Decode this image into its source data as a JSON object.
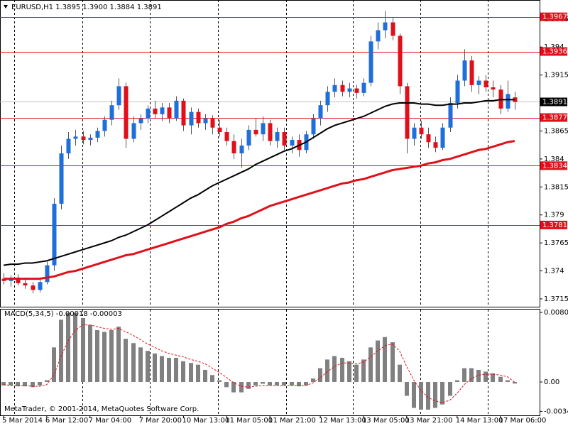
{
  "chart_data": [
    {
      "type": "candlestick",
      "title": "EURUSD,H1 1.3895 1.3900 1.3884 1.3891",
      "up_color": "#1e6fd9",
      "down_color": "#e0101a",
      "categories": [
        "5 Mar 2014",
        null,
        null,
        null,
        null,
        null,
        "6 Mar 12:00",
        null,
        null,
        null,
        null,
        null,
        "7 Mar 04:00",
        null,
        null,
        null,
        null,
        null,
        null,
        "7 Mar 20:00",
        null,
        null,
        null,
        null,
        null,
        "10 Mar 13:00",
        null,
        null,
        null,
        null,
        null,
        "11 Mar 05:00",
        null,
        null,
        null,
        null,
        null,
        "11 Mar 21:00",
        null,
        null,
        null,
        null,
        null,
        null,
        "12 Mar 13:00",
        null,
        null,
        null,
        null,
        null,
        "13 Mar 05:00",
        null,
        null,
        null,
        null,
        null,
        "13 Mar 21:00",
        null,
        null,
        null,
        null,
        null,
        null,
        "14 Mar 13:00",
        null,
        null,
        null,
        null,
        null,
        "17 Mar 06:00",
        null,
        null
      ],
      "ohlc": [
        [
          1.3733,
          1.3738,
          1.3728,
          1.3731
        ],
        [
          1.3731,
          1.3736,
          1.3726,
          1.3734
        ],
        [
          1.3734,
          1.3737,
          1.3727,
          1.3729
        ],
        [
          1.3729,
          1.3733,
          1.3724,
          1.3727
        ],
        [
          1.3727,
          1.373,
          1.372,
          1.3723
        ],
        [
          1.3723,
          1.3732,
          1.3721,
          1.373
        ],
        [
          1.373,
          1.3748,
          1.3728,
          1.3745
        ],
        [
          1.3745,
          1.3805,
          1.374,
          1.38
        ],
        [
          1.38,
          1.3852,
          1.3795,
          1.3845
        ],
        [
          1.3845,
          1.3864,
          1.384,
          1.3858
        ],
        [
          1.3858,
          1.3866,
          1.3852,
          1.386
        ],
        [
          1.386,
          1.3865,
          1.3853,
          1.3857
        ],
        [
          1.3857,
          1.3862,
          1.3852,
          1.3859
        ],
        [
          1.3859,
          1.3868,
          1.3855,
          1.3865
        ],
        [
          1.3865,
          1.3878,
          1.386,
          1.3875
        ],
        [
          1.3875,
          1.3892,
          1.387,
          1.3888
        ],
        [
          1.3888,
          1.3912,
          1.3884,
          1.3905
        ],
        [
          1.3905,
          1.3908,
          1.385,
          1.3858
        ],
        [
          1.3858,
          1.3878,
          1.3855,
          1.3872
        ],
        [
          1.3872,
          1.388,
          1.3866,
          1.3876
        ],
        [
          1.3876,
          1.3888,
          1.3872,
          1.3885
        ],
        [
          1.3885,
          1.3892,
          1.3876,
          1.388
        ],
        [
          1.388,
          1.389,
          1.3874,
          1.3886
        ],
        [
          1.3886,
          1.389,
          1.3872,
          1.3876
        ],
        [
          1.3876,
          1.3896,
          1.3874,
          1.3892
        ],
        [
          1.3892,
          1.3894,
          1.3865,
          1.387
        ],
        [
          1.387,
          1.3886,
          1.3862,
          1.3882
        ],
        [
          1.3882,
          1.3885,
          1.3868,
          1.3872
        ],
        [
          1.3872,
          1.388,
          1.3866,
          1.3876
        ],
        [
          1.3876,
          1.3879,
          1.3862,
          1.3868
        ],
        [
          1.3868,
          1.3875,
          1.386,
          1.3864
        ],
        [
          1.3864,
          1.3868,
          1.3852,
          1.3856
        ],
        [
          1.3856,
          1.3862,
          1.384,
          1.3845
        ],
        [
          1.3845,
          1.3858,
          1.3832,
          1.3852
        ],
        [
          1.3852,
          1.387,
          1.3848,
          1.3866
        ],
        [
          1.3866,
          1.3876,
          1.386,
          1.3862
        ],
        [
          1.3862,
          1.3878,
          1.3856,
          1.3872
        ],
        [
          1.3872,
          1.3875,
          1.3852,
          1.3856
        ],
        [
          1.3856,
          1.3868,
          1.385,
          1.3864
        ],
        [
          1.3864,
          1.3868,
          1.3848,
          1.3852
        ],
        [
          1.3852,
          1.386,
          1.3845,
          1.3857
        ],
        [
          1.3857,
          1.3862,
          1.3842,
          1.3848
        ],
        [
          1.3848,
          1.3865,
          1.3845,
          1.3862
        ],
        [
          1.3862,
          1.388,
          1.3858,
          1.3876
        ],
        [
          1.3876,
          1.3892,
          1.387,
          1.3888
        ],
        [
          1.3888,
          1.3905,
          1.3882,
          1.39
        ],
        [
          1.39,
          1.3912,
          1.3895,
          1.3906
        ],
        [
          1.3906,
          1.391,
          1.3896,
          1.39
        ],
        [
          1.39,
          1.3908,
          1.3895,
          1.3903
        ],
        [
          1.3903,
          1.3906,
          1.3894,
          1.3899
        ],
        [
          1.3899,
          1.3912,
          1.3896,
          1.3908
        ],
        [
          1.3908,
          1.395,
          1.3905,
          1.3945
        ],
        [
          1.3945,
          1.3962,
          1.3938,
          1.3955
        ],
        [
          1.3955,
          1.3972,
          1.3948,
          1.3962
        ],
        [
          1.3962,
          1.3966,
          1.3946,
          1.395
        ],
        [
          1.395,
          1.3952,
          1.3898,
          1.3905
        ],
        [
          1.3905,
          1.3908,
          1.3845,
          1.3858
        ],
        [
          1.3858,
          1.3872,
          1.3852,
          1.3868
        ],
        [
          1.3868,
          1.3874,
          1.3858,
          1.3862
        ],
        [
          1.3862,
          1.3868,
          1.385,
          1.3855
        ],
        [
          1.3855,
          1.386,
          1.3846,
          1.385
        ],
        [
          1.385,
          1.3872,
          1.3848,
          1.3868
        ],
        [
          1.3868,
          1.3895,
          1.3864,
          1.389
        ],
        [
          1.389,
          1.3915,
          1.3885,
          1.391
        ],
        [
          1.391,
          1.3938,
          1.3905,
          1.3928
        ],
        [
          1.3928,
          1.3932,
          1.39,
          1.3906
        ],
        [
          1.3906,
          1.3914,
          1.3898,
          1.391
        ],
        [
          1.391,
          1.3915,
          1.39,
          1.3904
        ],
        [
          1.3904,
          1.391,
          1.3895,
          1.3902
        ],
        [
          1.3902,
          1.3906,
          1.388,
          1.3885
        ],
        [
          1.3885,
          1.391,
          1.3882,
          1.3898
        ],
        [
          1.3895,
          1.39,
          1.3884,
          1.3891
        ]
      ],
      "series": [
        {
          "color": "#000000",
          "values": [
            1.3745,
            1.3746,
            1.3746,
            1.3747,
            1.3747,
            1.3748,
            1.3749,
            1.3751,
            1.3753,
            1.3755,
            1.3757,
            1.3759,
            1.3761,
            1.3763,
            1.3765,
            1.3767,
            1.377,
            1.3772,
            1.3775,
            1.3778,
            1.3781,
            1.3785,
            1.3789,
            1.3793,
            1.3797,
            1.3801,
            1.3805,
            1.3808,
            1.3812,
            1.3816,
            1.3819,
            1.3822,
            1.3825,
            1.3828,
            1.3831,
            1.3835,
            1.3838,
            1.3841,
            1.3844,
            1.3847,
            1.3849,
            1.3852,
            1.3855,
            1.3859,
            1.3863,
            1.3867,
            1.387,
            1.3872,
            1.3874,
            1.3876,
            1.3878,
            1.3881,
            1.3884,
            1.3887,
            1.3889,
            1.389,
            1.389,
            1.389,
            1.3889,
            1.3889,
            1.3888,
            1.3888,
            1.3889,
            1.3889,
            1.389,
            1.389,
            1.3891,
            1.3892,
            1.3892,
            1.3893,
            1.3893,
            1.3893
          ]
        },
        {
          "color": "#e0101a",
          "values": [
            1.3733,
            1.3733,
            1.3733,
            1.3733,
            1.3733,
            1.3733,
            1.3734,
            1.3735,
            1.3737,
            1.3739,
            1.374,
            1.3742,
            1.3744,
            1.3746,
            1.3748,
            1.375,
            1.3752,
            1.3754,
            1.3755,
            1.3757,
            1.3759,
            1.3761,
            1.3763,
            1.3765,
            1.3767,
            1.3769,
            1.3771,
            1.3773,
            1.3775,
            1.3777,
            1.3779,
            1.3782,
            1.3784,
            1.3787,
            1.3789,
            1.3792,
            1.3795,
            1.3798,
            1.38,
            1.3802,
            1.3804,
            1.3806,
            1.3808,
            1.381,
            1.3812,
            1.3814,
            1.3816,
            1.3818,
            1.3819,
            1.3821,
            1.3822,
            1.3824,
            1.3826,
            1.3828,
            1.383,
            1.3831,
            1.3832,
            1.3833,
            1.3834,
            1.3836,
            1.3837,
            1.3839,
            1.384,
            1.3842,
            1.3844,
            1.3846,
            1.3848,
            1.3849,
            1.3851,
            1.3853,
            1.3855,
            1.3856
          ]
        }
      ],
      "levels": [
        1.3967,
        1.3936,
        1.3877,
        1.3834,
        1.3781
      ],
      "level_color": "#e0101a",
      "bid": 1.3891,
      "ylim": [
        1.3708,
        1.3982
      ],
      "yticks": [
        1.3965,
        1.394,
        1.3915,
        1.389,
        1.3865,
        1.384,
        1.3815,
        1.379,
        1.3765,
        1.374,
        1.3715
      ]
    },
    {
      "type": "macd",
      "title": "MACD(5,34,5) -0.00018 -0.00003",
      "color": "#808080",
      "signal_color": "#e0101a",
      "values": [
        -0.0004,
        -0.0004,
        -0.0005,
        -0.0005,
        -0.0006,
        -0.0004,
        0.0002,
        0.004,
        0.0072,
        0.008,
        0.008,
        0.0074,
        0.0066,
        0.006,
        0.0058,
        0.006,
        0.0064,
        0.005,
        0.0045,
        0.004,
        0.0036,
        0.0033,
        0.003,
        0.0028,
        0.0028,
        0.0024,
        0.0022,
        0.002,
        0.0014,
        0.0008,
        0.0002,
        -0.0006,
        -0.0012,
        -0.0012,
        -0.0008,
        -0.0004,
        -0.0002,
        -0.0004,
        -0.0004,
        -0.0004,
        -0.0004,
        -0.0005,
        -0.0004,
        0.0004,
        0.0016,
        0.0026,
        0.003,
        0.0028,
        0.0024,
        0.002,
        0.0026,
        0.004,
        0.0048,
        0.0052,
        0.0046,
        0.002,
        -0.0016,
        -0.003,
        -0.0032,
        -0.0032,
        -0.003,
        -0.0026,
        -0.0016,
        0.0002,
        0.0016,
        0.0016,
        0.0014,
        0.0012,
        0.001,
        0.0006,
        0.0002,
        -0.00018
      ],
      "signal": [
        -0.0003,
        -0.0004,
        -0.0004,
        -0.0004,
        -0.0005,
        -0.0005,
        -0.0003,
        0.0008,
        0.003,
        0.0048,
        0.006,
        0.0066,
        0.0066,
        0.0064,
        0.0062,
        0.0061,
        0.0062,
        0.0058,
        0.0054,
        0.0049,
        0.0044,
        0.004,
        0.0036,
        0.0033,
        0.0031,
        0.0029,
        0.0026,
        0.0024,
        0.0021,
        0.0016,
        0.0011,
        0.0005,
        -0.0001,
        -0.0005,
        -0.0006,
        -0.0005,
        -0.0004,
        -0.0004,
        -0.0004,
        -0.0004,
        -0.0004,
        -0.0004,
        -0.0004,
        -0.0001,
        0.0005,
        0.0012,
        0.0018,
        0.0022,
        0.0022,
        0.0021,
        0.0023,
        0.0029,
        0.0036,
        0.0042,
        0.0044,
        0.0036,
        0.0018,
        0.0002,
        -0.001,
        -0.0018,
        -0.0022,
        -0.0024,
        -0.0021,
        -0.0013,
        -0.0003,
        0.0004,
        0.0008,
        0.0009,
        0.0009,
        0.0008,
        0.0006,
        -3e-05
      ],
      "ylim": [
        -0.00386,
        0.00838
      ],
      "yticks": [
        0.00805,
        {
          "value": 0,
          "label": "0.00"
        },
        -0.0034
      ],
      "footer": "MetaTrader, © 2001-2014, MetaQuotes Software Corp."
    }
  ]
}
